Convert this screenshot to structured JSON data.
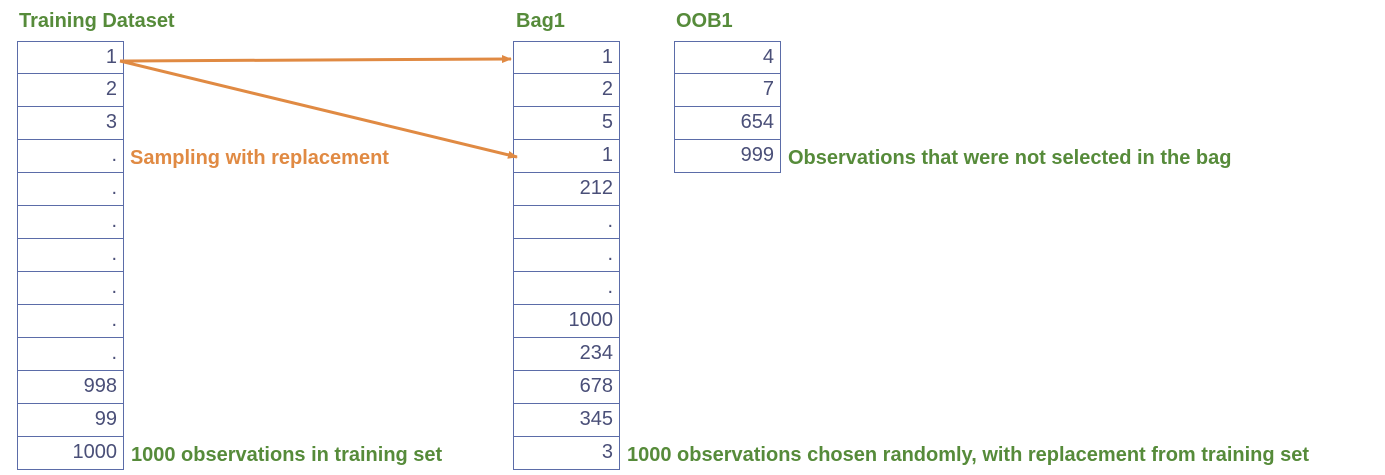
{
  "training": {
    "title": "Training Dataset",
    "rows": [
      "1",
      "2",
      "3",
      ".",
      ".",
      ".",
      ".",
      ".",
      ".",
      ".",
      "998",
      "99",
      "1000"
    ],
    "note": "1000 observations in training set"
  },
  "bag": {
    "title": "Bag1",
    "rows": [
      "1",
      "2",
      "5",
      "1",
      "212",
      ".",
      ".",
      ".",
      "1000",
      "234",
      "678",
      "345",
      "3"
    ],
    "note": "1000 observations chosen randomly, with replacement from training set"
  },
  "oob": {
    "title": "OOB1",
    "rows": [
      "4",
      "7",
      "654",
      "999"
    ],
    "note": "Observations that were not selected in the bag"
  },
  "sampling_label": "Sampling with replacement",
  "colors": {
    "title_green": "#568b3a",
    "arrow_orange": "#e08a43",
    "cell_border": "#5b6ca8",
    "cell_text": "#4a4f78"
  }
}
